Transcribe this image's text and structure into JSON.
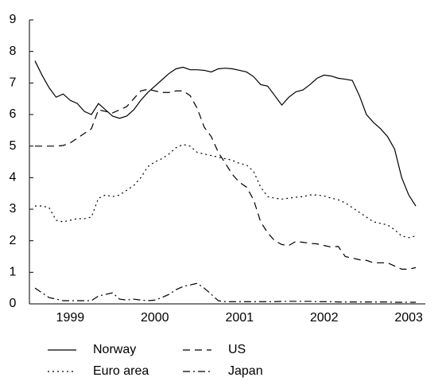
{
  "chart_data": {
    "type": "line",
    "categories": [
      null,
      null,
      null,
      null,
      null,
      "1999",
      null,
      null,
      null,
      null,
      null,
      null,
      null,
      null,
      null,
      null,
      null,
      "2000",
      null,
      null,
      null,
      null,
      null,
      null,
      null,
      null,
      null,
      null,
      null,
      "2001",
      null,
      null,
      null,
      null,
      null,
      null,
      null,
      null,
      null,
      null,
      null,
      "2002",
      null,
      null,
      null,
      null,
      null,
      null,
      null,
      null,
      null,
      null,
      null,
      "2003",
      null
    ],
    "ylim": [
      0,
      9
    ],
    "yticks": [
      0,
      1,
      2,
      3,
      4,
      5,
      6,
      7,
      8,
      9
    ],
    "series": [
      {
        "name": "Norway",
        "color": "#000000",
        "dash": "solid",
        "values": [
          7.7,
          7.25,
          6.85,
          6.55,
          6.65,
          6.45,
          6.35,
          6.1,
          6.0,
          6.35,
          6.15,
          5.95,
          5.88,
          5.95,
          6.15,
          6.45,
          6.7,
          6.9,
          7.1,
          7.3,
          7.45,
          7.5,
          7.42,
          7.42,
          7.4,
          7.35,
          7.45,
          7.47,
          7.45,
          7.4,
          7.35,
          7.2,
          6.95,
          6.9,
          6.6,
          6.3,
          6.55,
          6.72,
          6.78,
          6.95,
          7.15,
          7.25,
          7.22,
          7.15,
          7.12,
          7.08,
          6.6,
          6.0,
          5.75,
          5.55,
          5.3,
          4.9,
          4.0,
          3.45,
          3.1
        ]
      },
      {
        "name": "US",
        "color": "#000000",
        "dash": "dashed",
        "values": [
          5.0,
          5.0,
          5.0,
          5.0,
          5.02,
          5.1,
          5.25,
          5.4,
          5.55,
          6.15,
          6.1,
          6.05,
          6.15,
          6.25,
          6.5,
          6.75,
          6.8,
          6.75,
          6.7,
          6.7,
          6.75,
          6.75,
          6.6,
          6.2,
          5.6,
          5.3,
          4.8,
          4.45,
          4.1,
          3.85,
          3.7,
          3.3,
          2.6,
          2.25,
          2.0,
          1.88,
          1.85,
          1.98,
          1.95,
          1.92,
          1.9,
          1.85,
          1.8,
          1.82,
          1.5,
          1.45,
          1.4,
          1.38,
          1.3,
          1.3,
          1.3,
          1.2,
          1.1,
          1.1,
          1.15
        ]
      },
      {
        "name": "Euro area",
        "color": "#000000",
        "dash": "dotted",
        "values": [
          3.1,
          3.1,
          3.05,
          2.65,
          2.6,
          2.65,
          2.7,
          2.7,
          2.75,
          3.35,
          3.45,
          3.4,
          3.45,
          3.6,
          3.75,
          4.0,
          4.35,
          4.5,
          4.6,
          4.75,
          4.95,
          5.05,
          5.0,
          4.8,
          4.75,
          4.7,
          4.65,
          4.6,
          4.55,
          4.45,
          4.4,
          4.2,
          3.7,
          3.4,
          3.35,
          3.32,
          3.35,
          3.38,
          3.4,
          3.45,
          3.45,
          3.42,
          3.35,
          3.3,
          3.2,
          3.05,
          2.9,
          2.75,
          2.6,
          2.55,
          2.5,
          2.35,
          2.15,
          2.1,
          2.15
        ]
      },
      {
        "name": "Japan",
        "color": "#000000",
        "dash": "dashdot",
        "values": [
          0.5,
          0.35,
          0.2,
          0.15,
          0.1,
          0.1,
          0.1,
          0.1,
          0.1,
          0.25,
          0.3,
          0.35,
          0.15,
          0.12,
          0.15,
          0.12,
          0.1,
          0.12,
          0.2,
          0.3,
          0.45,
          0.55,
          0.6,
          0.65,
          0.5,
          0.3,
          0.1,
          0.07,
          0.07,
          0.07,
          0.07,
          0.07,
          0.07,
          0.07,
          0.07,
          0.08,
          0.08,
          0.08,
          0.08,
          0.08,
          0.07,
          0.07,
          0.07,
          0.06,
          0.06,
          0.06,
          0.06,
          0.06,
          0.06,
          0.06,
          0.06,
          0.05,
          0.05,
          0.05,
          0.05
        ]
      }
    ]
  }
}
